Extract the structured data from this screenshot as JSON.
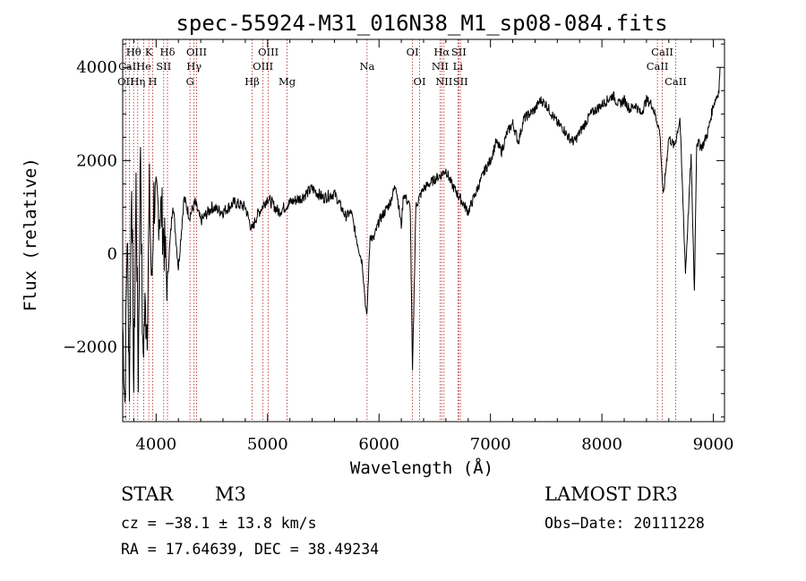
{
  "chart_data": {
    "type": "line",
    "title": "spec-55924-M31_016N38_M1_sp08-084.fits",
    "xlabel": "Wavelength (Å)",
    "ylabel": "Flux (relative)",
    "xlim": [
      3700,
      9100
    ],
    "ylim": [
      -3600,
      4600
    ],
    "xticks": [
      4000,
      5000,
      6000,
      7000,
      8000,
      9000
    ],
    "yticks": [
      -2000,
      0,
      2000,
      4000
    ],
    "grid": false,
    "series": [
      {
        "name": "flux",
        "x": [
          3700,
          3720,
          3740,
          3760,
          3780,
          3800,
          3820,
          3840,
          3860,
          3880,
          3900,
          3920,
          3940,
          3960,
          3980,
          4000,
          4050,
          4100,
          4150,
          4200,
          4250,
          4300,
          4350,
          4400,
          4500,
          4600,
          4700,
          4800,
          4860,
          4900,
          5000,
          5100,
          5200,
          5300,
          5400,
          5500,
          5600,
          5700,
          5750,
          5800,
          5850,
          5890,
          5920,
          5950,
          6000,
          6050,
          6100,
          6150,
          6200,
          6220,
          6240,
          6280,
          6300,
          6330,
          6360,
          6400,
          6450,
          6500,
          6560,
          6600,
          6650,
          6700,
          6750,
          6800,
          6850,
          6900,
          6950,
          7000,
          7050,
          7100,
          7150,
          7200,
          7250,
          7300,
          7350,
          7400,
          7450,
          7500,
          7550,
          7600,
          7650,
          7700,
          7750,
          7800,
          7850,
          7900,
          7950,
          8000,
          8050,
          8100,
          8150,
          8200,
          8250,
          8300,
          8350,
          8400,
          8450,
          8500,
          8520,
          8550,
          8600,
          8650,
          8700,
          8750,
          8800,
          8830,
          8850,
          8900,
          8950,
          9000,
          9050,
          9060
        ],
        "values": [
          -1500,
          -3200,
          500,
          -2800,
          1800,
          -2900,
          1500,
          -2600,
          2500,
          -2300,
          -1200,
          -1500,
          1300,
          -800,
          1200,
          1000,
          900,
          -600,
          1100,
          -300,
          1200,
          800,
          1100,
          700,
          1000,
          900,
          1100,
          1000,
          500,
          800,
          1200,
          900,
          1100,
          1200,
          1400,
          1200,
          1300,
          800,
          900,
          300,
          -200,
          -1400,
          400,
          300,
          700,
          900,
          1100,
          1500,
          600,
          1300,
          1200,
          1000,
          -2600,
          1000,
          1200,
          1400,
          1500,
          1600,
          1700,
          1800,
          1500,
          1300,
          1100,
          900,
          1200,
          1500,
          1800,
          2000,
          2400,
          2200,
          2600,
          2800,
          2400,
          2900,
          3000,
          3100,
          3300,
          3200,
          3000,
          2800,
          2700,
          2500,
          2400,
          2600,
          2800,
          3000,
          3100,
          3200,
          3300,
          3400,
          3200,
          3300,
          3100,
          3200,
          3000,
          3300,
          3200,
          2800,
          2600,
          1200,
          2500,
          2300,
          2900,
          -400,
          2100,
          -800,
          2400,
          2300,
          2600,
          3200,
          3500,
          4000
        ]
      }
    ],
    "line_markers": [
      {
        "label": "Hθ",
        "wl": 3798,
        "row": 1
      },
      {
        "label": "OII",
        "wl": 3727,
        "row": 3
      },
      {
        "label": "CaII",
        "wl": 3760,
        "row": 2
      },
      {
        "label": "Hη",
        "wl": 3835,
        "row": 3
      },
      {
        "label": "He",
        "wl": 3889,
        "row": 2
      },
      {
        "label": "K",
        "wl": 3934,
        "row": 1
      },
      {
        "label": "H",
        "wl": 3969,
        "row": 3
      },
      {
        "label": "SII",
        "wl": 4068,
        "row": 2
      },
      {
        "label": "Hδ",
        "wl": 4102,
        "row": 1
      },
      {
        "label": "OIII",
        "wl": 4363,
        "row": 1
      },
      {
        "label": "Hγ",
        "wl": 4340,
        "row": 2
      },
      {
        "label": "G",
        "wl": 4304,
        "row": 3
      },
      {
        "label": "Hβ",
        "wl": 4861,
        "row": 3
      },
      {
        "label": "OIII",
        "wl": 4959,
        "row": 2
      },
      {
        "label": "OIII",
        "wl": 5007,
        "row": 1
      },
      {
        "label": "Mg",
        "wl": 5175,
        "row": 3
      },
      {
        "label": "Na",
        "wl": 5893,
        "row": 2
      },
      {
        "label": "OI",
        "wl": 6300,
        "row": 1
      },
      {
        "label": "OI",
        "wl": 6364,
        "row": 3
      },
      {
        "label": "NII",
        "wl": 6548,
        "row": 2
      },
      {
        "label": "Hα",
        "wl": 6563,
        "row": 1
      },
      {
        "label": "NII",
        "wl": 6583,
        "row": 3
      },
      {
        "label": "SII",
        "wl": 6716,
        "row": 1
      },
      {
        "label": "Li",
        "wl": 6708,
        "row": 2
      },
      {
        "label": "SII",
        "wl": 6731,
        "row": 3
      },
      {
        "label": "CaII",
        "wl": 8498,
        "row": 2
      },
      {
        "label": "CaII",
        "wl": 8542,
        "row": 1
      },
      {
        "label": "CaII",
        "wl": 8662,
        "row": 3
      }
    ]
  },
  "info": {
    "class_label": "STAR",
    "subclass": "M3",
    "survey": "LAMOST DR3",
    "cz": "cz = −38.1 ± 13.8 km/s",
    "obs_date": "Obs−Date: 20111228",
    "coords": "RA =  17.64639, DEC =  38.49234"
  },
  "colors": {
    "axis": "#000000",
    "spectrum": "#000000",
    "marker": "#b22222"
  }
}
